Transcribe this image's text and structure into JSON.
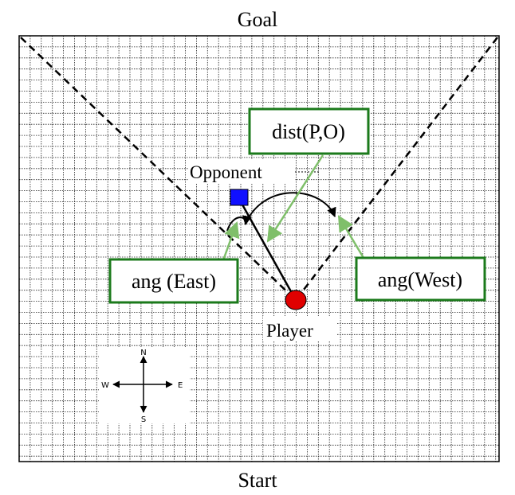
{
  "labels": {
    "goal": "Goal",
    "start": "Start",
    "opponent": "Opponent",
    "player": "Player",
    "dist": "dist(P,O)",
    "ang_east": "ang (East)",
    "ang_west": "ang(West)"
  },
  "compass": {
    "n": "N",
    "s": "S",
    "e": "E",
    "w": "W"
  },
  "colors": {
    "box_border": "#1b7a1b",
    "arrow": "#7fbf6a",
    "opponent": "#1010ff",
    "player": "#e00000",
    "grid": "#222222"
  }
}
